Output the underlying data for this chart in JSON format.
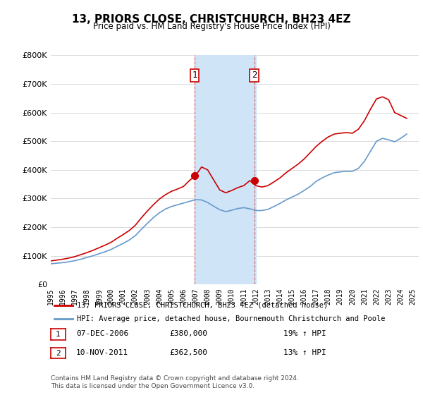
{
  "title": "13, PRIORS CLOSE, CHRISTCHURCH, BH23 4EZ",
  "subtitle": "Price paid vs. HM Land Registry's House Price Index (HPI)",
  "legend_line1": "13, PRIORS CLOSE, CHRISTCHURCH, BH23 4EZ (detached house)",
  "legend_line2": "HPI: Average price, detached house, Bournemouth Christchurch and Poole",
  "sale1_label": "1",
  "sale1_date": "07-DEC-2006",
  "sale1_price": "£380,000",
  "sale1_hpi": "19% ↑ HPI",
  "sale2_label": "2",
  "sale2_date": "10-NOV-2011",
  "sale2_price": "£362,500",
  "sale2_hpi": "13% ↑ HPI",
  "footer": "Contains HM Land Registry data © Crown copyright and database right 2024.\nThis data is licensed under the Open Government Licence v3.0.",
  "red_color": "#cc0000",
  "blue_color": "#6699cc",
  "shade_color": "#d0e4f7",
  "ylim": [
    0,
    800000
  ],
  "yticks": [
    0,
    100000,
    200000,
    300000,
    400000,
    500000,
    600000,
    700000,
    800000
  ],
  "xlim_start": 1995.0,
  "xlim_end": 2025.5,
  "shade_xstart": 2006.9,
  "shade_xend": 2012.0,
  "sale1_x": 2006.92,
  "sale1_y": 380000,
  "sale2_x": 2011.86,
  "sale2_y": 362500,
  "hpi_years": [
    1995,
    1995.5,
    1996,
    1996.5,
    1997,
    1997.5,
    1998,
    1998.5,
    1999,
    1999.5,
    2000,
    2000.5,
    2001,
    2001.5,
    2002,
    2002.5,
    2003,
    2003.5,
    2004,
    2004.5,
    2005,
    2005.5,
    2006,
    2006.5,
    2007,
    2007.5,
    2008,
    2008.5,
    2009,
    2009.5,
    2010,
    2010.5,
    2011,
    2011.5,
    2012,
    2012.5,
    2013,
    2013.5,
    2014,
    2014.5,
    2015,
    2015.5,
    2016,
    2016.5,
    2017,
    2017.5,
    2018,
    2018.5,
    2019,
    2019.5,
    2020,
    2020.5,
    2021,
    2021.5,
    2022,
    2022.5,
    2023,
    2023.5,
    2024,
    2024.5
  ],
  "hpi_values": [
    72000,
    74000,
    76000,
    79000,
    83000,
    88000,
    94000,
    100000,
    107000,
    114000,
    122000,
    133000,
    143000,
    155000,
    170000,
    192000,
    213000,
    233000,
    250000,
    263000,
    272000,
    278000,
    284000,
    290000,
    296000,
    295000,
    286000,
    273000,
    261000,
    254000,
    259000,
    265000,
    268000,
    264000,
    258000,
    258000,
    262000,
    272000,
    283000,
    295000,
    305000,
    315000,
    328000,
    342000,
    360000,
    372000,
    382000,
    390000,
    393000,
    395000,
    395000,
    405000,
    430000,
    465000,
    500000,
    510000,
    505000,
    498000,
    510000,
    525000
  ],
  "red_years": [
    1995,
    1995.5,
    1996,
    1996.5,
    1997,
    1997.5,
    1998,
    1998.5,
    1999,
    1999.5,
    2000,
    2000.5,
    2001,
    2001.5,
    2002,
    2002.5,
    2003,
    2003.5,
    2004,
    2004.5,
    2005,
    2005.5,
    2006,
    2006.5,
    2007,
    2007.5,
    2008,
    2008.5,
    2009,
    2009.5,
    2010,
    2010.5,
    2011,
    2011.5,
    2012,
    2012.5,
    2013,
    2013.5,
    2014,
    2014.5,
    2015,
    2015.5,
    2016,
    2016.5,
    2017,
    2017.5,
    2018,
    2018.5,
    2019,
    2019.5,
    2020,
    2020.5,
    2021,
    2021.5,
    2022,
    2022.5,
    2023,
    2023.5,
    2024,
    2024.5
  ],
  "red_values": [
    82000,
    85000,
    88000,
    92000,
    97000,
    104000,
    111000,
    119000,
    128000,
    137000,
    147000,
    161000,
    174000,
    188000,
    206000,
    232000,
    256000,
    278000,
    298000,
    313000,
    325000,
    333000,
    342000,
    363000,
    380000,
    410000,
    400000,
    365000,
    330000,
    320000,
    328000,
    338000,
    345000,
    362500,
    345000,
    340000,
    345000,
    358000,
    372000,
    390000,
    405000,
    420000,
    438000,
    460000,
    482000,
    500000,
    515000,
    525000,
    528000,
    530000,
    528000,
    542000,
    572000,
    612000,
    648000,
    655000,
    645000,
    600000,
    590000,
    580000
  ]
}
